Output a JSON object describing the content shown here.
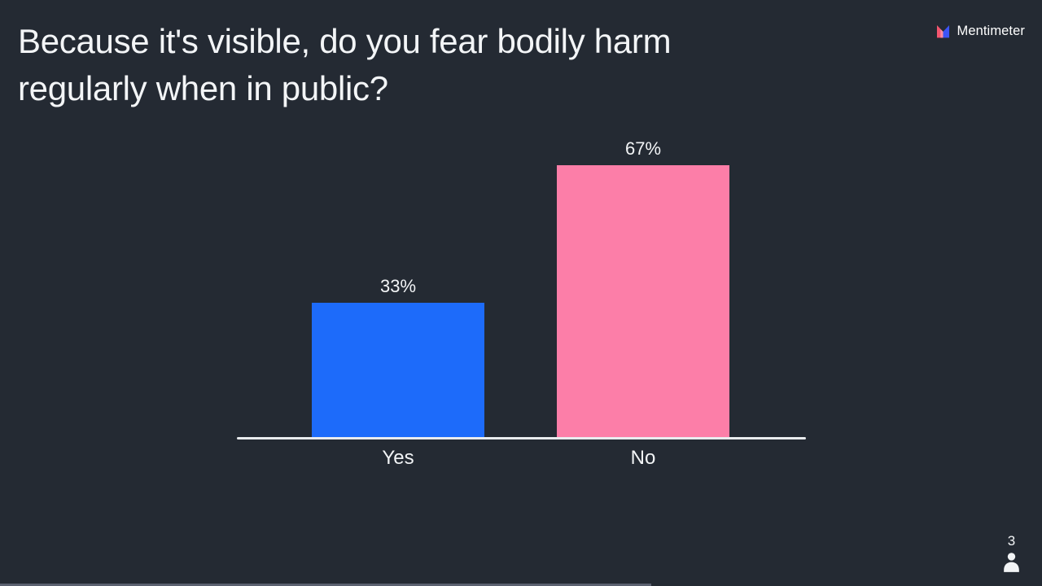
{
  "page": {
    "background_color": "#242A33"
  },
  "header": {
    "title": "Because it's visible, do you fear bodily harm regularly when in public?"
  },
  "branding": {
    "name": "Mentimeter"
  },
  "chart_data": {
    "type": "bar",
    "title": "Because it's visible, do you fear bodily harm regularly when in public?",
    "categories": [
      "Yes",
      "No"
    ],
    "values": [
      33,
      67
    ],
    "value_labels": [
      "33%",
      "67%"
    ],
    "bar_colors": [
      "#1D6BFA",
      "#FC7EA8"
    ],
    "unit": "%",
    "ylim": [
      0,
      100
    ],
    "grid": false,
    "legend": false,
    "axis_line_color": "#E9EBEE",
    "label_color": "#F2F4F6"
  },
  "participants": {
    "count": "3"
  },
  "bottom_progress_bar": {
    "width_percent": 62.5,
    "color": "#5B6170"
  }
}
